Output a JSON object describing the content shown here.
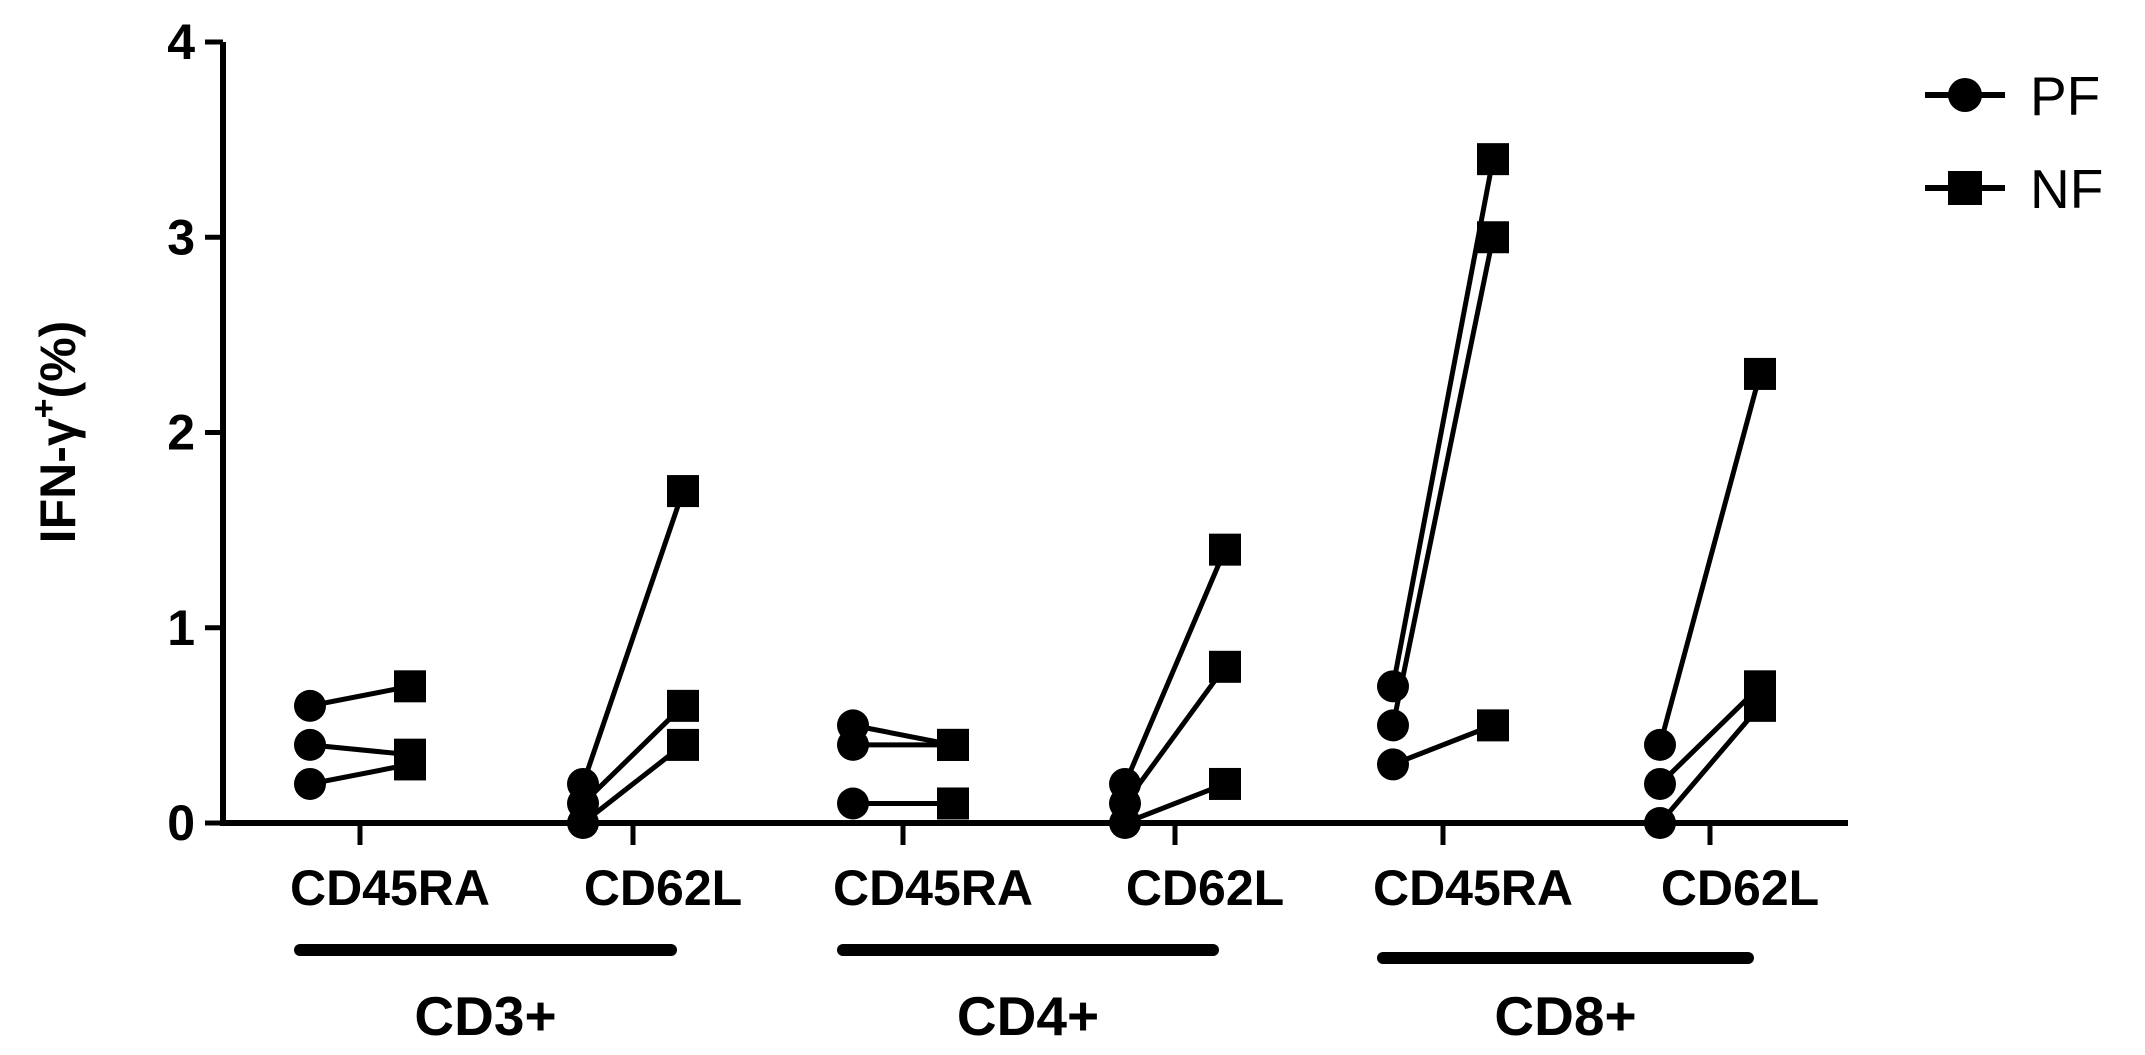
{
  "chart_data": {
    "type": "scatter",
    "ylabel": {
      "prefix": "IFN-γ",
      "sup": "+",
      "suffix": "(%)"
    },
    "ylim": [
      0,
      4
    ],
    "yticks": [
      "0",
      "1",
      "2",
      "3",
      "4"
    ],
    "categories": [
      "CD45RA",
      "CD62L",
      "CD45RA",
      "CD62L",
      "CD45RA",
      "CD62L"
    ],
    "groups": [
      {
        "label": "CD3+",
        "categories": [
          0,
          1
        ]
      },
      {
        "label": "CD4+",
        "categories": [
          2,
          3
        ]
      },
      {
        "label": "CD8+",
        "categories": [
          4,
          5
        ]
      }
    ],
    "legend": {
      "position": "top-right",
      "entries": [
        {
          "name": "PF",
          "marker": "circle"
        },
        {
          "name": "NF",
          "marker": "square"
        }
      ]
    },
    "pairs": [
      {
        "category": 0,
        "items": [
          [
            0.6,
            0.7
          ],
          [
            0.4,
            0.35
          ],
          [
            0.2,
            0.3
          ]
        ]
      },
      {
        "category": 1,
        "items": [
          [
            0.2,
            1.7
          ],
          [
            0.1,
            0.6
          ],
          [
            0.0,
            0.4
          ]
        ]
      },
      {
        "category": 2,
        "items": [
          [
            0.5,
            0.4
          ],
          [
            0.4,
            0.4
          ],
          [
            0.1,
            0.1
          ]
        ]
      },
      {
        "category": 3,
        "items": [
          [
            0.2,
            1.4
          ],
          [
            0.1,
            0.8
          ],
          [
            0.0,
            0.2
          ]
        ]
      },
      {
        "category": 4,
        "items": [
          [
            0.7,
            3.4
          ],
          [
            0.5,
            3.0
          ],
          [
            0.3,
            0.5
          ]
        ]
      },
      {
        "category": 5,
        "items": [
          [
            0.4,
            2.3
          ],
          [
            0.2,
            0.7
          ],
          [
            0.0,
            0.6
          ]
        ]
      }
    ]
  }
}
